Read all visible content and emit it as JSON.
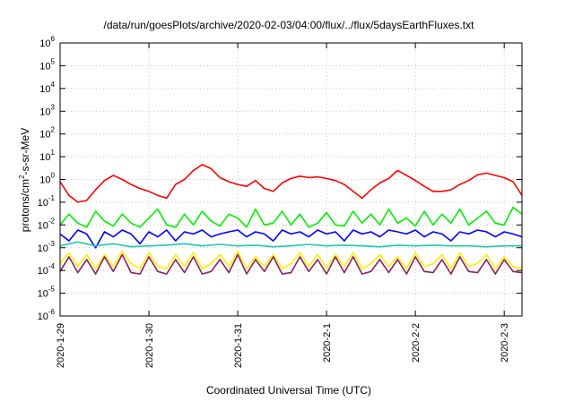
{
  "chart_data": {
    "type": "line",
    "title": "/data/run/goesPlots/archive/2020-02-03/04:00/flux/../flux/5daysEarthFluxes.txt",
    "xlabel": "Coordinated Universal Time (UTC)",
    "ylabel": {
      "prefix": "protons/cm",
      "sup": "2",
      "suffix": "-s-sr-MeV"
    },
    "yscale": "log",
    "ylim": [
      1e-06,
      1000000.0
    ],
    "xlim": [
      0,
      5.2
    ],
    "grid": true,
    "y_ticks": [
      {
        "value": 1e-06,
        "base": "10",
        "exp": "-6"
      },
      {
        "value": 1e-05,
        "base": "10",
        "exp": "-5"
      },
      {
        "value": 0.0001,
        "base": "10",
        "exp": "-4"
      },
      {
        "value": 0.001,
        "base": "10",
        "exp": "-3"
      },
      {
        "value": 0.01,
        "base": "10",
        "exp": "-2"
      },
      {
        "value": 0.1,
        "base": "10",
        "exp": "-1"
      },
      {
        "value": 1.0,
        "base": "10",
        "exp": "0"
      },
      {
        "value": 10.0,
        "base": "10",
        "exp": "1"
      },
      {
        "value": 100.0,
        "base": "10",
        "exp": "2"
      },
      {
        "value": 1000.0,
        "base": "10",
        "exp": "3"
      },
      {
        "value": 10000.0,
        "base": "10",
        "exp": "4"
      },
      {
        "value": 100000.0,
        "base": "10",
        "exp": "5"
      },
      {
        "value": 1000000.0,
        "base": "10",
        "exp": "6"
      }
    ],
    "x_ticks": [
      {
        "value": 0,
        "label": "2020-1-29"
      },
      {
        "value": 1,
        "label": "2020-1-30"
      },
      {
        "value": 2,
        "label": "2020-1-31"
      },
      {
        "value": 3,
        "label": "2020-2-1"
      },
      {
        "value": 4,
        "label": "2020-2-2"
      },
      {
        "value": 5,
        "label": "2020-2-3"
      }
    ],
    "series": [
      {
        "color": "#ff0000",
        "x": [
          0,
          0.1,
          0.2,
          0.3,
          0.4,
          0.5,
          0.6,
          0.7,
          0.8,
          0.9,
          1.0,
          1.1,
          1.2,
          1.3,
          1.4,
          1.5,
          1.6,
          1.7,
          1.8,
          1.9,
          2.0,
          2.1,
          2.2,
          2.3,
          2.4,
          2.5,
          2.6,
          2.7,
          2.8,
          2.9,
          3.0,
          3.1,
          3.2,
          3.3,
          3.4,
          3.5,
          3.6,
          3.7,
          3.8,
          3.9,
          4.0,
          4.1,
          4.2,
          4.3,
          4.4,
          4.5,
          4.6,
          4.7,
          4.8,
          4.9,
          5.0,
          5.1,
          5.2
        ],
        "y": [
          0.8,
          0.2,
          0.1,
          0.12,
          0.35,
          0.9,
          1.5,
          1.0,
          0.6,
          0.4,
          0.3,
          0.2,
          0.15,
          0.6,
          1.0,
          2.5,
          4.5,
          3.0,
          1.2,
          0.8,
          0.6,
          0.5,
          0.9,
          0.4,
          0.3,
          0.7,
          1.1,
          1.4,
          1.2,
          1.3,
          1.1,
          0.9,
          0.6,
          0.3,
          0.15,
          0.35,
          0.7,
          1.1,
          2.5,
          1.5,
          0.9,
          0.5,
          0.3,
          0.3,
          0.35,
          0.6,
          0.9,
          1.6,
          1.9,
          1.5,
          1.2,
          0.8,
          0.2
        ]
      },
      {
        "color": "#00ee00",
        "x": [
          0,
          0.1,
          0.2,
          0.3,
          0.4,
          0.5,
          0.6,
          0.7,
          0.8,
          0.9,
          1.0,
          1.1,
          1.2,
          1.3,
          1.4,
          1.5,
          1.6,
          1.7,
          1.8,
          1.9,
          2.0,
          2.1,
          2.2,
          2.3,
          2.4,
          2.5,
          2.6,
          2.7,
          2.8,
          2.9,
          3.0,
          3.1,
          3.2,
          3.3,
          3.4,
          3.5,
          3.6,
          3.7,
          3.8,
          3.9,
          4.0,
          4.1,
          4.2,
          4.3,
          4.4,
          4.5,
          4.6,
          4.7,
          4.8,
          4.9,
          5.0,
          5.1,
          5.2
        ],
        "y": [
          0.01,
          0.03,
          0.012,
          0.008,
          0.04,
          0.015,
          0.009,
          0.03,
          0.012,
          0.008,
          0.02,
          0.05,
          0.01,
          0.008,
          0.03,
          0.01,
          0.04,
          0.015,
          0.009,
          0.03,
          0.02,
          0.008,
          0.05,
          0.01,
          0.012,
          0.04,
          0.01,
          0.03,
          0.008,
          0.012,
          0.035,
          0.01,
          0.009,
          0.04,
          0.012,
          0.03,
          0.01,
          0.05,
          0.012,
          0.02,
          0.009,
          0.04,
          0.01,
          0.03,
          0.012,
          0.05,
          0.01,
          0.02,
          0.04,
          0.012,
          0.01,
          0.06,
          0.03
        ]
      },
      {
        "color": "#0000ff",
        "x": [
          0,
          0.1,
          0.2,
          0.3,
          0.4,
          0.5,
          0.6,
          0.7,
          0.8,
          0.9,
          1.0,
          1.1,
          1.2,
          1.3,
          1.4,
          1.5,
          1.6,
          1.7,
          1.8,
          1.9,
          2.0,
          2.1,
          2.2,
          2.3,
          2.4,
          2.5,
          2.6,
          2.7,
          2.8,
          2.9,
          3.0,
          3.1,
          3.2,
          3.3,
          3.4,
          3.5,
          3.6,
          3.7,
          3.8,
          3.9,
          4.0,
          4.1,
          4.2,
          4.3,
          4.4,
          4.5,
          4.6,
          4.7,
          4.8,
          4.9,
          5.0,
          5.1,
          5.2
        ],
        "y": [
          0.004,
          0.002,
          0.006,
          0.004,
          0.001,
          0.005,
          0.003,
          0.006,
          0.004,
          0.0015,
          0.005,
          0.003,
          0.006,
          0.002,
          0.005,
          0.004,
          0.006,
          0.003,
          0.004,
          0.005,
          0.006,
          0.003,
          0.005,
          0.004,
          0.002,
          0.006,
          0.004,
          0.005,
          0.003,
          0.006,
          0.004,
          0.005,
          0.002,
          0.006,
          0.004,
          0.005,
          0.003,
          0.006,
          0.005,
          0.004,
          0.006,
          0.003,
          0.005,
          0.004,
          0.002,
          0.005,
          0.004,
          0.006,
          0.005,
          0.003,
          0.005,
          0.004,
          0.003
        ]
      },
      {
        "color": "#20c8b0",
        "x": [
          0,
          0.2,
          0.4,
          0.6,
          0.8,
          1.0,
          1.2,
          1.4,
          1.6,
          1.8,
          2.0,
          2.2,
          2.4,
          2.6,
          2.8,
          3.0,
          3.2,
          3.4,
          3.6,
          3.8,
          4.0,
          4.2,
          4.4,
          4.6,
          4.8,
          5.0,
          5.2
        ],
        "y": [
          0.0012,
          0.0018,
          0.0012,
          0.0015,
          0.0011,
          0.0012,
          0.0013,
          0.0015,
          0.0012,
          0.0014,
          0.0012,
          0.0013,
          0.0011,
          0.0012,
          0.0014,
          0.0012,
          0.0013,
          0.0012,
          0.0011,
          0.0013,
          0.0012,
          0.0013,
          0.0012,
          0.0012,
          0.0011,
          0.0012,
          0.0012
        ]
      },
      {
        "color": "#ffee00",
        "x": [
          0,
          0.1,
          0.2,
          0.3,
          0.4,
          0.5,
          0.6,
          0.7,
          0.8,
          0.9,
          1.0,
          1.1,
          1.2,
          1.3,
          1.4,
          1.5,
          1.6,
          1.7,
          1.8,
          1.9,
          2.0,
          2.1,
          2.2,
          2.3,
          2.4,
          2.5,
          2.6,
          2.7,
          2.8,
          2.9,
          3.0,
          3.1,
          3.2,
          3.3,
          3.4,
          3.5,
          3.6,
          3.7,
          3.8,
          3.9,
          4.0,
          4.1,
          4.2,
          4.3,
          4.4,
          4.5,
          4.6,
          4.7,
          4.8,
          4.9,
          5.0,
          5.1,
          5.2
        ],
        "y": [
          0.0002,
          0.0006,
          0.00015,
          0.0005,
          0.00012,
          0.0005,
          0.00015,
          0.0007,
          0.0002,
          0.00012,
          0.0006,
          0.00015,
          0.00012,
          0.0005,
          0.00015,
          0.0006,
          0.00012,
          0.0002,
          0.0005,
          0.00015,
          0.0007,
          0.00012,
          0.0004,
          0.00015,
          0.0005,
          0.00012,
          0.0002,
          0.0006,
          0.00015,
          0.0005,
          0.00012,
          0.0005,
          0.00015,
          0.0006,
          0.00012,
          0.0002,
          0.0005,
          0.00015,
          0.0004,
          0.00012,
          0.0006,
          0.00015,
          0.0002,
          0.0005,
          0.00012,
          0.0006,
          0.00015,
          0.0002,
          0.0005,
          0.00012,
          0.0004,
          0.00015,
          0.00012
        ]
      },
      {
        "color": "#882266",
        "x": [
          0,
          0.1,
          0.2,
          0.3,
          0.4,
          0.5,
          0.6,
          0.7,
          0.8,
          0.9,
          1.0,
          1.1,
          1.2,
          1.3,
          1.4,
          1.5,
          1.6,
          1.7,
          1.8,
          1.9,
          2.0,
          2.1,
          2.2,
          2.3,
          2.4,
          2.5,
          2.6,
          2.7,
          2.8,
          2.9,
          3.0,
          3.1,
          3.2,
          3.3,
          3.4,
          3.5,
          3.6,
          3.7,
          3.8,
          3.9,
          4.0,
          4.1,
          4.2,
          4.3,
          4.4,
          4.5,
          4.6,
          4.7,
          4.8,
          4.9,
          5.0,
          5.1,
          5.2
        ],
        "y": [
          9e-05,
          0.0004,
          8e-05,
          0.0003,
          7e-05,
          0.0004,
          9e-05,
          0.0005,
          8e-05,
          7e-05,
          0.0004,
          9e-05,
          7e-05,
          0.0003,
          8e-05,
          0.0004,
          7e-05,
          9e-05,
          0.0003,
          8e-05,
          0.0005,
          7e-05,
          0.0003,
          9e-05,
          0.0004,
          7e-05,
          8e-05,
          0.0004,
          9e-05,
          0.0003,
          7e-05,
          0.0004,
          8e-05,
          0.0004,
          7e-05,
          9e-05,
          0.0003,
          8e-05,
          0.0003,
          7e-05,
          0.0004,
          9e-05,
          8e-05,
          0.0003,
          7e-05,
          0.0004,
          9e-05,
          8e-05,
          0.0003,
          7e-05,
          0.0003,
          9e-05,
          8e-05
        ]
      }
    ]
  }
}
